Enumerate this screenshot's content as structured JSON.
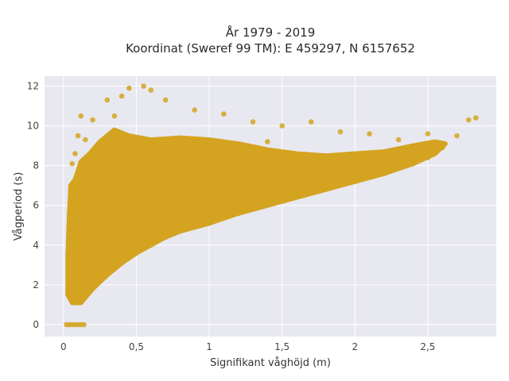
{
  "chart_data": {
    "type": "scatter",
    "title": "År 1979 - 2019",
    "subtitle": "Koordinat (Sweref 99 TM): E 459297, N 6157652",
    "xlabel": "Signifikant våghöjd (m)",
    "ylabel": "Vågperiod (s)",
    "xlim": [
      -0.13,
      2.97
    ],
    "ylim": [
      -0.6,
      12.5
    ],
    "x_ticks": [
      0,
      0.5,
      1,
      1.5,
      2,
      2.5
    ],
    "x_tick_labels": [
      "0",
      "0,5",
      "1",
      "1,5",
      "2",
      "2,5"
    ],
    "y_ticks": [
      0,
      2,
      4,
      6,
      8,
      10,
      12
    ],
    "y_tick_labels": [
      "0",
      "2",
      "4",
      "6",
      "8",
      "10",
      "12"
    ],
    "grid": true,
    "legend": "none",
    "marker_color": "#D4A421",
    "plot_background": "#E8E8F0",
    "series": [
      {
        "values": [
          [
            0.02,
            0.0
          ],
          [
            0.04,
            0.0
          ],
          [
            0.06,
            0.0
          ],
          [
            0.08,
            0.0
          ],
          [
            0.1,
            0.0
          ],
          [
            0.12,
            0.0
          ],
          [
            0.14,
            0.0
          ],
          [
            0.03,
            1.6
          ],
          [
            0.05,
            2.5
          ],
          [
            0.05,
            4.0
          ],
          [
            0.04,
            5.6
          ],
          [
            0.05,
            7.0
          ],
          [
            0.06,
            8.1
          ],
          [
            0.08,
            6.5
          ],
          [
            0.1,
            1.1
          ],
          [
            0.12,
            1.3
          ],
          [
            0.15,
            1.5
          ],
          [
            0.2,
            2.0
          ],
          [
            0.25,
            2.3
          ],
          [
            0.3,
            2.6
          ],
          [
            0.4,
            3.1
          ],
          [
            0.5,
            3.6
          ],
          [
            0.6,
            4.0
          ],
          [
            0.7,
            4.4
          ],
          [
            0.8,
            4.7
          ],
          [
            1.0,
            5.1
          ],
          [
            1.2,
            5.6
          ],
          [
            1.5,
            6.2
          ],
          [
            1.8,
            6.8
          ],
          [
            2.0,
            7.2
          ],
          [
            2.2,
            7.6
          ],
          [
            2.4,
            8.1
          ],
          [
            2.5,
            8.4
          ],
          [
            2.6,
            8.9
          ],
          [
            2.7,
            9.5
          ],
          [
            2.78,
            10.3
          ],
          [
            2.83,
            10.4
          ],
          [
            2.5,
            9.6
          ],
          [
            2.3,
            9.3
          ],
          [
            2.1,
            9.6
          ],
          [
            1.9,
            9.7
          ],
          [
            1.7,
            10.2
          ],
          [
            1.5,
            10.0
          ],
          [
            1.3,
            10.2
          ],
          [
            1.1,
            10.6
          ],
          [
            0.9,
            10.8
          ],
          [
            0.7,
            11.3
          ],
          [
            0.6,
            11.8
          ],
          [
            0.55,
            12.0
          ],
          [
            0.45,
            11.9
          ],
          [
            0.4,
            11.5
          ],
          [
            0.3,
            11.3
          ],
          [
            0.2,
            10.3
          ],
          [
            0.12,
            10.5
          ],
          [
            0.1,
            9.5
          ],
          [
            0.08,
            8.6
          ],
          [
            0.15,
            9.3
          ],
          [
            0.35,
            10.5
          ],
          [
            0.25,
            8.8
          ],
          [
            0.5,
            9.3
          ],
          [
            0.3,
            6.0
          ],
          [
            0.2,
            5.0
          ],
          [
            0.15,
            4.0
          ],
          [
            0.12,
            3.0
          ],
          [
            0.5,
            7.5
          ],
          [
            0.8,
            8.0
          ],
          [
            1.0,
            7.0
          ],
          [
            1.2,
            8.1
          ],
          [
            1.5,
            8.0
          ],
          [
            1.8,
            8.2
          ],
          [
            2.0,
            8.3
          ],
          [
            0.6,
            5.5
          ],
          [
            0.4,
            7.0
          ],
          [
            0.7,
            9.0
          ],
          [
            1.4,
            9.2
          ],
          [
            2.3,
            8.6
          ],
          [
            0.1,
            6.0
          ],
          [
            0.2,
            7.5
          ],
          [
            0.9,
            6.3
          ],
          [
            1.6,
            7.3
          ],
          [
            0.35,
            4.5
          ],
          [
            0.55,
            6.5
          ]
        ]
      }
    ]
  }
}
